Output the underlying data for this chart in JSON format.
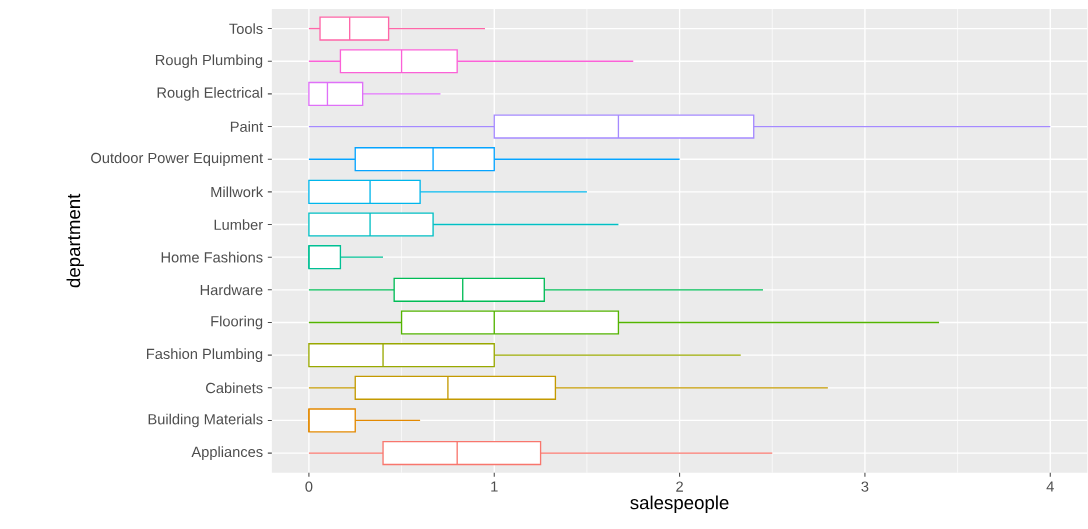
{
  "chart_data": {
    "type": "box",
    "orientation": "horizontal",
    "xlabel": "salespeople",
    "ylabel": "department",
    "categories": [
      "Tools",
      "Rough Plumbing",
      "Rough Electrical",
      "Paint",
      "Outdoor Power Equipment",
      "Millwork",
      "Lumber",
      "Home Fashions",
      "Hardware",
      "Flooring",
      "Fashion Plumbing",
      "Cabinets",
      "Building Materials",
      "Appliances"
    ],
    "boxes": [
      {
        "low": 0,
        "q1": 0.06,
        "median": 0.22,
        "q3": 0.43,
        "high": 0.95
      },
      {
        "low": 0,
        "q1": 0.17,
        "median": 0.5,
        "q3": 0.8,
        "high": 1.75
      },
      {
        "low": 0,
        "q1": 0,
        "median": 0.1,
        "q3": 0.29,
        "high": 0.71
      },
      {
        "low": 0,
        "q1": 1.0,
        "median": 1.67,
        "q3": 2.4,
        "high": 4.0
      },
      {
        "low": 0,
        "q1": 0.25,
        "median": 0.67,
        "q3": 1.0,
        "high": 2.0
      },
      {
        "low": 0,
        "q1": 0,
        "median": 0.33,
        "q3": 0.6,
        "high": 1.5
      },
      {
        "low": 0,
        "q1": 0,
        "median": 0.33,
        "q3": 0.67,
        "high": 1.67
      },
      {
        "low": 0,
        "q1": 0,
        "median": 0,
        "q3": 0.17,
        "high": 0.4
      },
      {
        "low": 0,
        "q1": 0.46,
        "median": 0.83,
        "q3": 1.27,
        "high": 2.45
      },
      {
        "low": 0,
        "q1": 0.5,
        "median": 1.0,
        "q3": 1.67,
        "high": 3.4
      },
      {
        "low": 0,
        "q1": 0,
        "median": 0.4,
        "q3": 1.0,
        "high": 2.33
      },
      {
        "low": 0,
        "q1": 0.25,
        "median": 0.75,
        "q3": 1.33,
        "high": 2.8
      },
      {
        "low": 0,
        "q1": 0,
        "median": 0,
        "q3": 0.25,
        "high": 0.6
      },
      {
        "low": 0,
        "q1": 0.4,
        "median": 0.8,
        "q3": 1.25,
        "high": 2.5
      }
    ],
    "colors": [
      "#FF66A8",
      "#FB61D7",
      "#DF70F8",
      "#A58AFF",
      "#06A4FF",
      "#00B6EB",
      "#00BFC4",
      "#00C094",
      "#00BC56",
      "#53B400",
      "#99A800",
      "#C49A00",
      "#E38900",
      "#F8766D"
    ],
    "xlim": [
      -0.2,
      4.2
    ],
    "xticks": [
      0,
      1,
      2,
      3,
      4
    ],
    "grid": true
  }
}
